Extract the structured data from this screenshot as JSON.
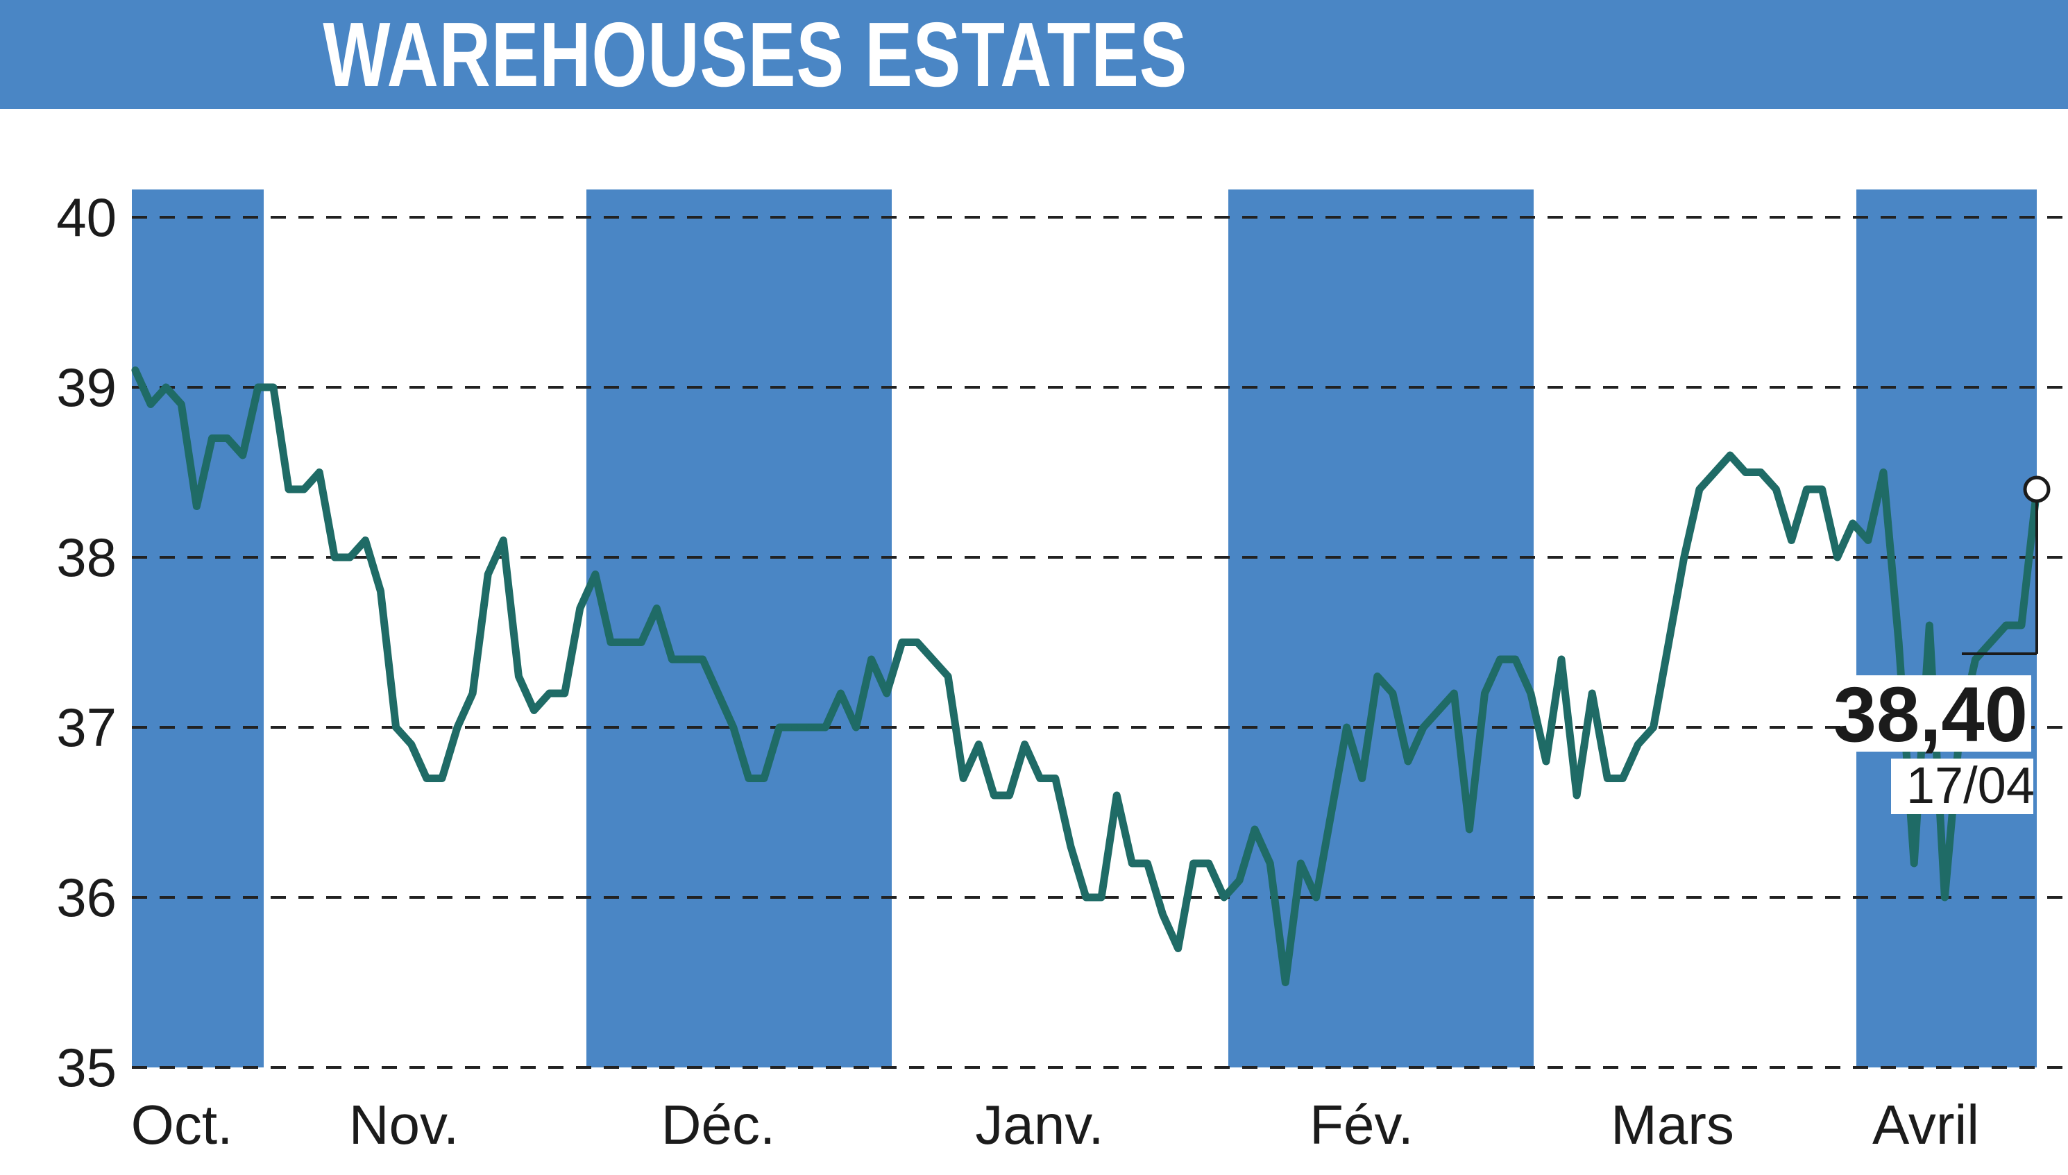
{
  "header": {
    "title": "WAREHOUSES ESTATES"
  },
  "colors": {
    "band": "#4a86c5",
    "line": "#1f6b66",
    "grid": "#222222",
    "title_bg": "#4a86c5"
  },
  "chart_data": {
    "type": "line",
    "title": "WAREHOUSES ESTATES",
    "xlabel": "",
    "ylabel": "",
    "ylim": [
      35,
      40
    ],
    "yticks": [
      "35",
      "36",
      "37",
      "38",
      "39",
      "40"
    ],
    "grid": "horizontal dashed",
    "months": [
      "Oct.",
      "Nov.",
      "Déc.",
      "Janv.",
      "Fév.",
      "Mars",
      "Avril"
    ],
    "shaded_months": [
      "Oct.",
      "Déc.",
      "Fév.",
      "Avril"
    ],
    "series": [
      {
        "values": [
          39.1,
          38.9,
          39.0,
          38.9,
          38.3,
          38.7,
          38.7,
          38.6,
          39.0,
          39.0,
          38.4,
          38.4,
          38.5,
          38.0,
          38.0,
          38.1,
          37.8,
          37.0,
          36.9,
          36.7,
          36.7,
          37.0,
          37.2,
          37.9,
          38.1,
          37.3,
          37.1,
          37.2,
          37.2,
          37.7,
          37.9,
          37.5,
          37.5,
          37.5,
          37.7,
          37.4,
          37.4,
          37.4,
          37.2,
          37.0,
          36.7,
          36.7,
          37.0,
          37.0,
          37.0,
          37.0,
          37.2,
          37.0,
          37.4,
          37.2,
          37.5,
          37.5,
          37.4,
          37.3,
          36.7,
          36.9,
          36.6,
          36.6,
          36.9,
          36.7,
          36.7,
          36.3,
          36.0,
          36.0,
          36.6,
          36.2,
          36.2,
          35.9,
          35.7,
          36.2,
          36.2,
          36.0,
          36.1,
          36.4,
          36.2,
          35.5,
          36.2,
          36.0,
          36.5,
          37.0,
          36.7,
          37.3,
          37.2,
          36.8,
          37.0,
          37.1,
          37.2,
          36.4,
          37.2,
          37.4,
          37.4,
          37.2,
          36.8,
          37.4,
          36.6,
          37.2,
          36.7,
          36.7,
          36.9,
          37.0,
          37.5,
          38.0,
          38.4,
          38.5,
          38.6,
          38.5,
          38.5,
          38.4,
          38.1,
          38.4,
          38.4,
          38.0,
          38.2,
          38.1,
          38.5,
          37.5,
          36.2,
          37.6,
          36.0,
          37.0,
          37.4,
          37.5,
          37.6,
          37.6,
          38.4
        ]
      }
    ],
    "last_value": {
      "value": 38.4,
      "label": "38,40",
      "date": "17/04"
    }
  }
}
